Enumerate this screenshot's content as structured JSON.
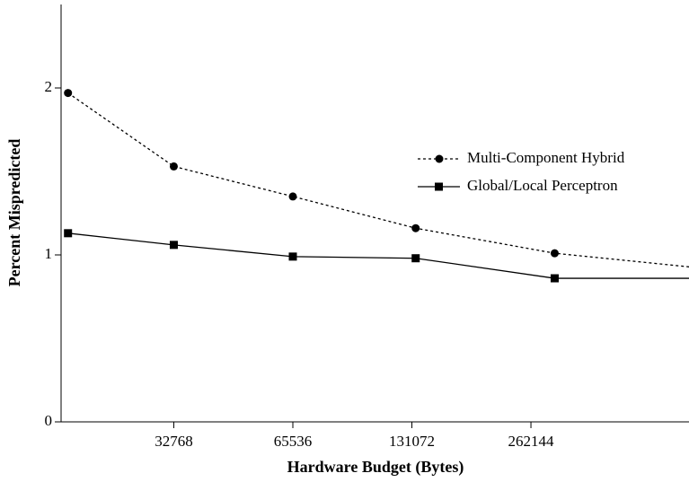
{
  "chart_data": {
    "type": "line",
    "x_label": "Hardware Budget (Bytes)",
    "y_label": "Percent Mispredicted",
    "x": [
      17700,
      32768,
      65536,
      134000,
      301000,
      1048576
    ],
    "xlim": [
      17000,
      658000
    ],
    "xticks": [
      32768,
      65536,
      131072,
      262144
    ],
    "xscale": "log2",
    "ylim": [
      0,
      2.5
    ],
    "yticks": [
      0,
      1,
      2
    ],
    "legend": "center right",
    "series": [
      {
        "name": "Multi-Component Hybrid",
        "color": "#000000",
        "dash": "dotted",
        "marker": "circle",
        "values": [
          1.97,
          1.53,
          1.35,
          1.16,
          1.01,
          0.88
        ]
      },
      {
        "name": "Global/Local Perceptron",
        "color": "#000000",
        "dash": "solid",
        "marker": "square",
        "values": [
          1.13,
          1.06,
          0.99,
          0.98,
          0.86,
          0.86
        ]
      }
    ]
  }
}
